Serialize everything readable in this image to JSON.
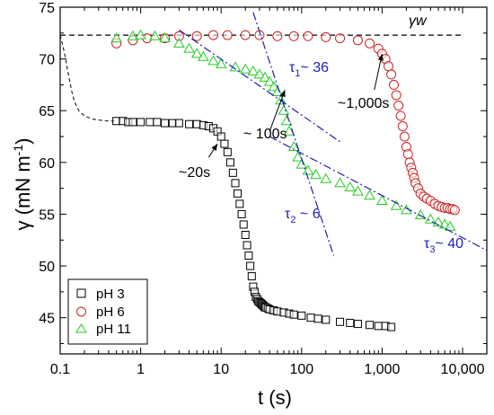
{
  "chart_data": {
    "type": "scatter",
    "xscale": "log",
    "xlim": [
      0.1,
      20000
    ],
    "ylim": [
      41.5,
      75
    ],
    "xlabel": "t  (s)",
    "ylabel_main": "γ (mN m",
    "ylabel_sup": "-1",
    "ylabel_close": ")",
    "xtick_labels": [
      "0.1",
      "1",
      "10",
      "100",
      "1,000",
      "10,000"
    ],
    "xtick_values": [
      0.1,
      1,
      10,
      100,
      1000,
      10000
    ],
    "ytick_values": [
      45,
      50,
      55,
      60,
      65,
      70,
      75
    ],
    "colors": {
      "pH3": "#000000",
      "pH6": "#cc2222",
      "pH11": "#22cc22",
      "fit": "#1f1fb4"
    },
    "legend": {
      "placement": "bottom-left",
      "items": [
        "pH 3",
        "pH 6",
        "pH 11"
      ]
    },
    "series": [
      {
        "name": "pH 3",
        "marker": "square",
        "x": [
          0.5,
          0.6,
          0.7,
          0.8,
          1,
          1.3,
          1.6,
          2,
          2.5,
          3,
          4,
          5,
          6,
          7,
          8,
          9,
          10,
          11,
          12,
          13,
          14,
          15,
          16,
          17,
          18,
          19,
          20,
          21,
          22,
          23,
          24,
          25,
          26,
          27,
          28,
          29,
          30,
          31,
          32,
          33,
          34,
          35,
          36,
          38,
          40,
          45,
          50,
          60,
          70,
          80,
          100,
          130,
          160,
          200,
          300,
          400,
          500,
          700,
          900,
          1100,
          1300
        ],
        "y": [
          64.0,
          64.0,
          63.9,
          63.9,
          63.9,
          63.9,
          63.9,
          63.8,
          63.8,
          63.8,
          63.7,
          63.7,
          63.6,
          63.5,
          63.3,
          63.0,
          62.5,
          61.8,
          61.0,
          60.0,
          59.0,
          58.0,
          57.0,
          56.0,
          55.0,
          54.0,
          53.0,
          52.0,
          51.0,
          50.0,
          49.0,
          48.0,
          47.5,
          47.0,
          46.8,
          46.6,
          46.5,
          46.4,
          46.3,
          46.2,
          46.1,
          46.0,
          46.0,
          45.9,
          45.8,
          45.7,
          45.6,
          45.5,
          45.4,
          45.3,
          45.2,
          45.0,
          44.9,
          44.8,
          44.6,
          44.5,
          44.4,
          44.3,
          44.2,
          44.2,
          44.1
        ]
      },
      {
        "name": "pH 6",
        "marker": "circle",
        "x": [
          0.5,
          0.8,
          1.2,
          2,
          3,
          5,
          8,
          12,
          20,
          30,
          50,
          80,
          120,
          200,
          300,
          500,
          700,
          900,
          1000,
          1100,
          1200,
          1300,
          1400,
          1500,
          1600,
          1700,
          1800,
          1900,
          2000,
          2100,
          2200,
          2300,
          2400,
          2500,
          2600,
          2800,
          3000,
          3300,
          3600,
          4000,
          4500,
          5000,
          5500,
          6000,
          6500,
          7000,
          7500,
          8000
        ],
        "y": [
          71.5,
          71.8,
          72.0,
          72.0,
          72.2,
          72.2,
          72.3,
          72.3,
          72.3,
          72.3,
          72.2,
          72.2,
          72.2,
          72.1,
          72.0,
          71.8,
          71.5,
          71.0,
          70.5,
          70.0,
          69.3,
          68.5,
          67.5,
          66.5,
          65.5,
          64.5,
          63.5,
          62.5,
          61.5,
          60.8,
          60.0,
          59.5,
          59.0,
          58.5,
          58.0,
          57.5,
          57.0,
          56.7,
          56.5,
          56.3,
          56.0,
          55.8,
          55.7,
          55.6,
          55.6,
          55.5,
          55.5,
          55.4
        ]
      },
      {
        "name": "pH 11",
        "marker": "triangle",
        "x": [
          0.5,
          0.8,
          1,
          1.5,
          2,
          3,
          4,
          5,
          6,
          8,
          10,
          15,
          20,
          25,
          30,
          35,
          40,
          45,
          50,
          55,
          60,
          65,
          70,
          80,
          90,
          100,
          120,
          150,
          200,
          300,
          400,
          500,
          700,
          1000,
          1500,
          2000,
          3000,
          4000,
          5000,
          6000,
          7000
        ],
        "y": [
          72.0,
          72.2,
          72.3,
          72.2,
          72.0,
          71.5,
          71.0,
          70.5,
          70.2,
          69.8,
          69.5,
          69.2,
          69.0,
          68.8,
          68.5,
          68.2,
          67.8,
          67.3,
          66.8,
          66.0,
          65.0,
          64.0,
          63.0,
          61.5,
          60.5,
          59.8,
          59.2,
          58.8,
          58.4,
          58.0,
          57.6,
          57.2,
          56.8,
          56.3,
          55.8,
          55.4,
          54.9,
          54.5,
          54.2,
          54.0,
          53.8
        ]
      }
    ],
    "reference_line": {
      "label": "γw",
      "y": 72.3
    },
    "pH3_guide_curve": {
      "x": [
        0.1,
        0.11,
        0.12,
        0.13,
        0.14,
        0.15,
        0.17,
        0.2,
        0.25,
        0.3,
        0.4,
        0.5
      ],
      "y": [
        72.3,
        71.0,
        69.5,
        68.0,
        66.8,
        65.9,
        65.0,
        64.5,
        64.2,
        64.1,
        64.0,
        64.0
      ]
    },
    "fit_lines": [
      {
        "label": "τ",
        "sub": "1",
        "value": "~ 36",
        "x": [
          3,
          300
        ],
        "y": [
          72.8,
          62.0
        ]
      },
      {
        "label": "τ",
        "sub": "2",
        "value": " ~ 6",
        "x": [
          25,
          250
        ],
        "y": [
          74.5,
          51.0
        ]
      },
      {
        "label": "τ",
        "sub": "3",
        "value": "~ 40",
        "x": [
          40,
          20000
        ],
        "y": [
          62.5,
          51.5
        ]
      }
    ],
    "annotations": [
      {
        "text": "~20s",
        "arrow_from": [
          7,
          60.5
        ],
        "arrow_to": [
          9,
          61.8
        ]
      },
      {
        "text": "~ 100s",
        "arrow_from": [
          40,
          63.0
        ],
        "arrow_to": [
          62,
          67.0
        ]
      },
      {
        "text": "~1,000s",
        "arrow_from": [
          800,
          67.0
        ],
        "arrow_to": [
          1000,
          70.5
        ]
      }
    ]
  }
}
